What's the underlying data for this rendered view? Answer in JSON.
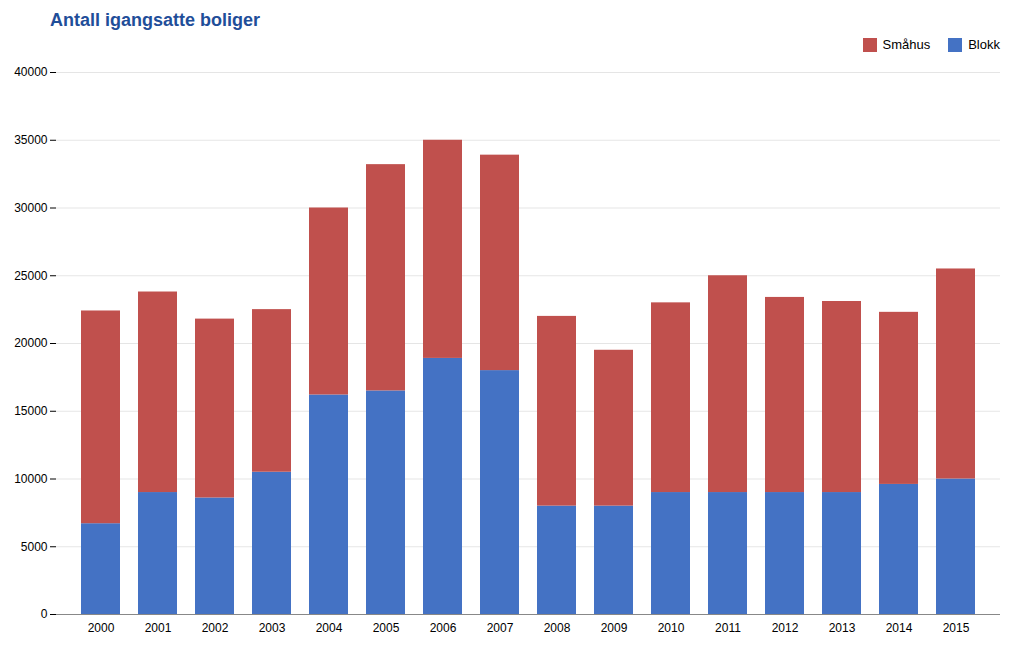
{
  "chart_data": {
    "type": "bar",
    "title": "Antall igangsatte boliger",
    "categories": [
      "2000",
      "2001",
      "2002",
      "2003",
      "2004",
      "2005",
      "2006",
      "2007",
      "2008",
      "2009",
      "2010",
      "2011",
      "2012",
      "2013",
      "2014",
      "2015"
    ],
    "series": [
      {
        "name": "Blokk",
        "color": "#4472C4",
        "values": [
          6700,
          9000,
          8600,
          10500,
          16200,
          16500,
          18900,
          18000,
          8000,
          8000,
          9000,
          9000,
          9000,
          9000,
          9600,
          10000
        ]
      },
      {
        "name": "Småhus",
        "color": "#C0504D",
        "values": [
          15700,
          14800,
          13200,
          12000,
          13800,
          16700,
          16100,
          15900,
          14000,
          11500,
          14000,
          16000,
          14400,
          14100,
          12700,
          15500
        ]
      }
    ],
    "stacked": true,
    "ylim": [
      0,
      40000
    ],
    "yticks": [
      0,
      5000,
      10000,
      15000,
      20000,
      25000,
      30000,
      35000,
      40000
    ],
    "grid": true,
    "legend": "upper right"
  }
}
